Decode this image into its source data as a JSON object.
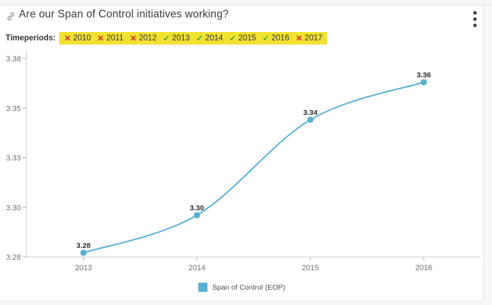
{
  "header": {
    "title": "Are our Span of Control initiatives working?"
  },
  "timeperiods": {
    "label": "Timeperiods:",
    "highlight_color": "#f2e230",
    "excluded_mark": "✕",
    "included_mark": "✓",
    "excluded_color": "#d3362b",
    "included_color": "#3fa33a",
    "items": [
      {
        "year": "2010",
        "included": false
      },
      {
        "year": "2011",
        "included": false
      },
      {
        "year": "2012",
        "included": false
      },
      {
        "year": "2013",
        "included": true
      },
      {
        "year": "2014",
        "included": true
      },
      {
        "year": "2015",
        "included": true
      },
      {
        "year": "2016",
        "included": true
      },
      {
        "year": "2017",
        "included": false
      }
    ]
  },
  "chart_data": {
    "type": "line",
    "title": "",
    "xlabel": "",
    "ylabel": "",
    "categories": [
      "2013",
      "2014",
      "2015",
      "2016"
    ],
    "series": [
      {
        "name": "Span of Control (EOP)",
        "values": [
          3.28,
          3.3,
          3.34,
          3.36
        ],
        "point_labels": [
          "3.28",
          "3.30",
          "3.34",
          "3.36"
        ],
        "values_precise": [
          3.277,
          3.296,
          3.344,
          3.363
        ],
        "color": "#55afd3"
      }
    ],
    "ylim": [
      3.275,
      3.375
    ],
    "yticks": {
      "values": [
        3.275,
        3.3,
        3.325,
        3.35,
        3.375
      ],
      "labels": [
        "3.28",
        "3.30",
        "3.33",
        "3.35",
        "3.38"
      ]
    },
    "grid": false,
    "smooth": true,
    "legend_position": "bottom-center",
    "axis_color": "#c8c8c8",
    "tick_color": "#a8a8a8"
  },
  "legend": {
    "items": [
      {
        "label": "Span of Control (EOP)",
        "color": "#55afd3"
      }
    ]
  }
}
